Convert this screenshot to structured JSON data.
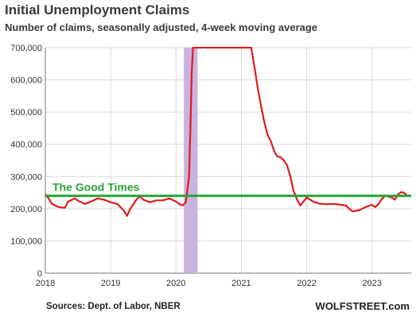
{
  "chart_data": {
    "type": "line",
    "title": "Initial Unemployment Claims",
    "subtitle": "Number of claims, seasonally adjusted, 4-week moving average",
    "xlabel": "",
    "ylabel": "",
    "xlim": [
      2018.0,
      2023.6
    ],
    "ylim": [
      0,
      700000
    ],
    "x_ticks": [
      2018,
      2019,
      2020,
      2021,
      2022,
      2023
    ],
    "y_ticks": [
      0,
      100000,
      200000,
      300000,
      400000,
      500000,
      600000,
      700000
    ],
    "y_tick_labels": [
      "0",
      "100,000",
      "200,000",
      "300,000",
      "400,000",
      "500,000",
      "600,000",
      "700,000"
    ],
    "grid": true,
    "recession_band": {
      "x0": 2020.12,
      "x1": 2020.33,
      "color": "#c9b3de"
    },
    "reference_line": {
      "value": 240000,
      "label": "The Good Times",
      "color": "#2aa43a"
    },
    "series": [
      {
        "color": "#e01b1b",
        "x": [
          2018.0,
          2018.05,
          2018.1,
          2018.2,
          2018.3,
          2018.35,
          2018.45,
          2018.5,
          2018.6,
          2018.7,
          2018.8,
          2018.9,
          2019.0,
          2019.1,
          2019.2,
          2019.25,
          2019.3,
          2019.35,
          2019.4,
          2019.45,
          2019.5,
          2019.6,
          2019.7,
          2019.8,
          2019.9,
          2020.0,
          2020.05,
          2020.1,
          2020.15,
          2020.2,
          2020.22,
          2020.24,
          2020.26,
          2020.28,
          2021.15,
          2021.2,
          2021.25,
          2021.3,
          2021.35,
          2021.4,
          2021.45,
          2021.5,
          2021.55,
          2021.6,
          2021.65,
          2021.7,
          2021.75,
          2021.8,
          2021.85,
          2021.9,
          2021.95,
          2022.0,
          2022.1,
          2022.2,
          2022.3,
          2022.4,
          2022.5,
          2022.6,
          2022.65,
          2022.7,
          2022.8,
          2022.9,
          2023.0,
          2023.05,
          2023.1,
          2023.15,
          2023.2,
          2023.3,
          2023.35,
          2023.4,
          2023.45,
          2023.5,
          2023.55
        ],
        "y": [
          245000,
          232000,
          215000,
          205000,
          203000,
          222000,
          232000,
          225000,
          215000,
          222000,
          232000,
          228000,
          220000,
          215000,
          195000,
          178000,
          200000,
          215000,
          230000,
          238000,
          228000,
          220000,
          226000,
          226000,
          232000,
          222000,
          215000,
          210000,
          220000,
          300000,
          450000,
          620000,
          700000,
          700000,
          700000,
          640000,
          575000,
          520000,
          470000,
          430000,
          410000,
          380000,
          362000,
          360000,
          350000,
          335000,
          300000,
          255000,
          230000,
          210000,
          222000,
          235000,
          222000,
          216000,
          214000,
          215000,
          213000,
          210000,
          200000,
          192000,
          195000,
          205000,
          212000,
          205000,
          215000,
          230000,
          240000,
          235000,
          228000,
          245000,
          252000,
          248000,
          238000
        ]
      }
    ],
    "source": "Sources: Dept. of Labor, NBER",
    "brand": "WOLFSTREET.com"
  }
}
